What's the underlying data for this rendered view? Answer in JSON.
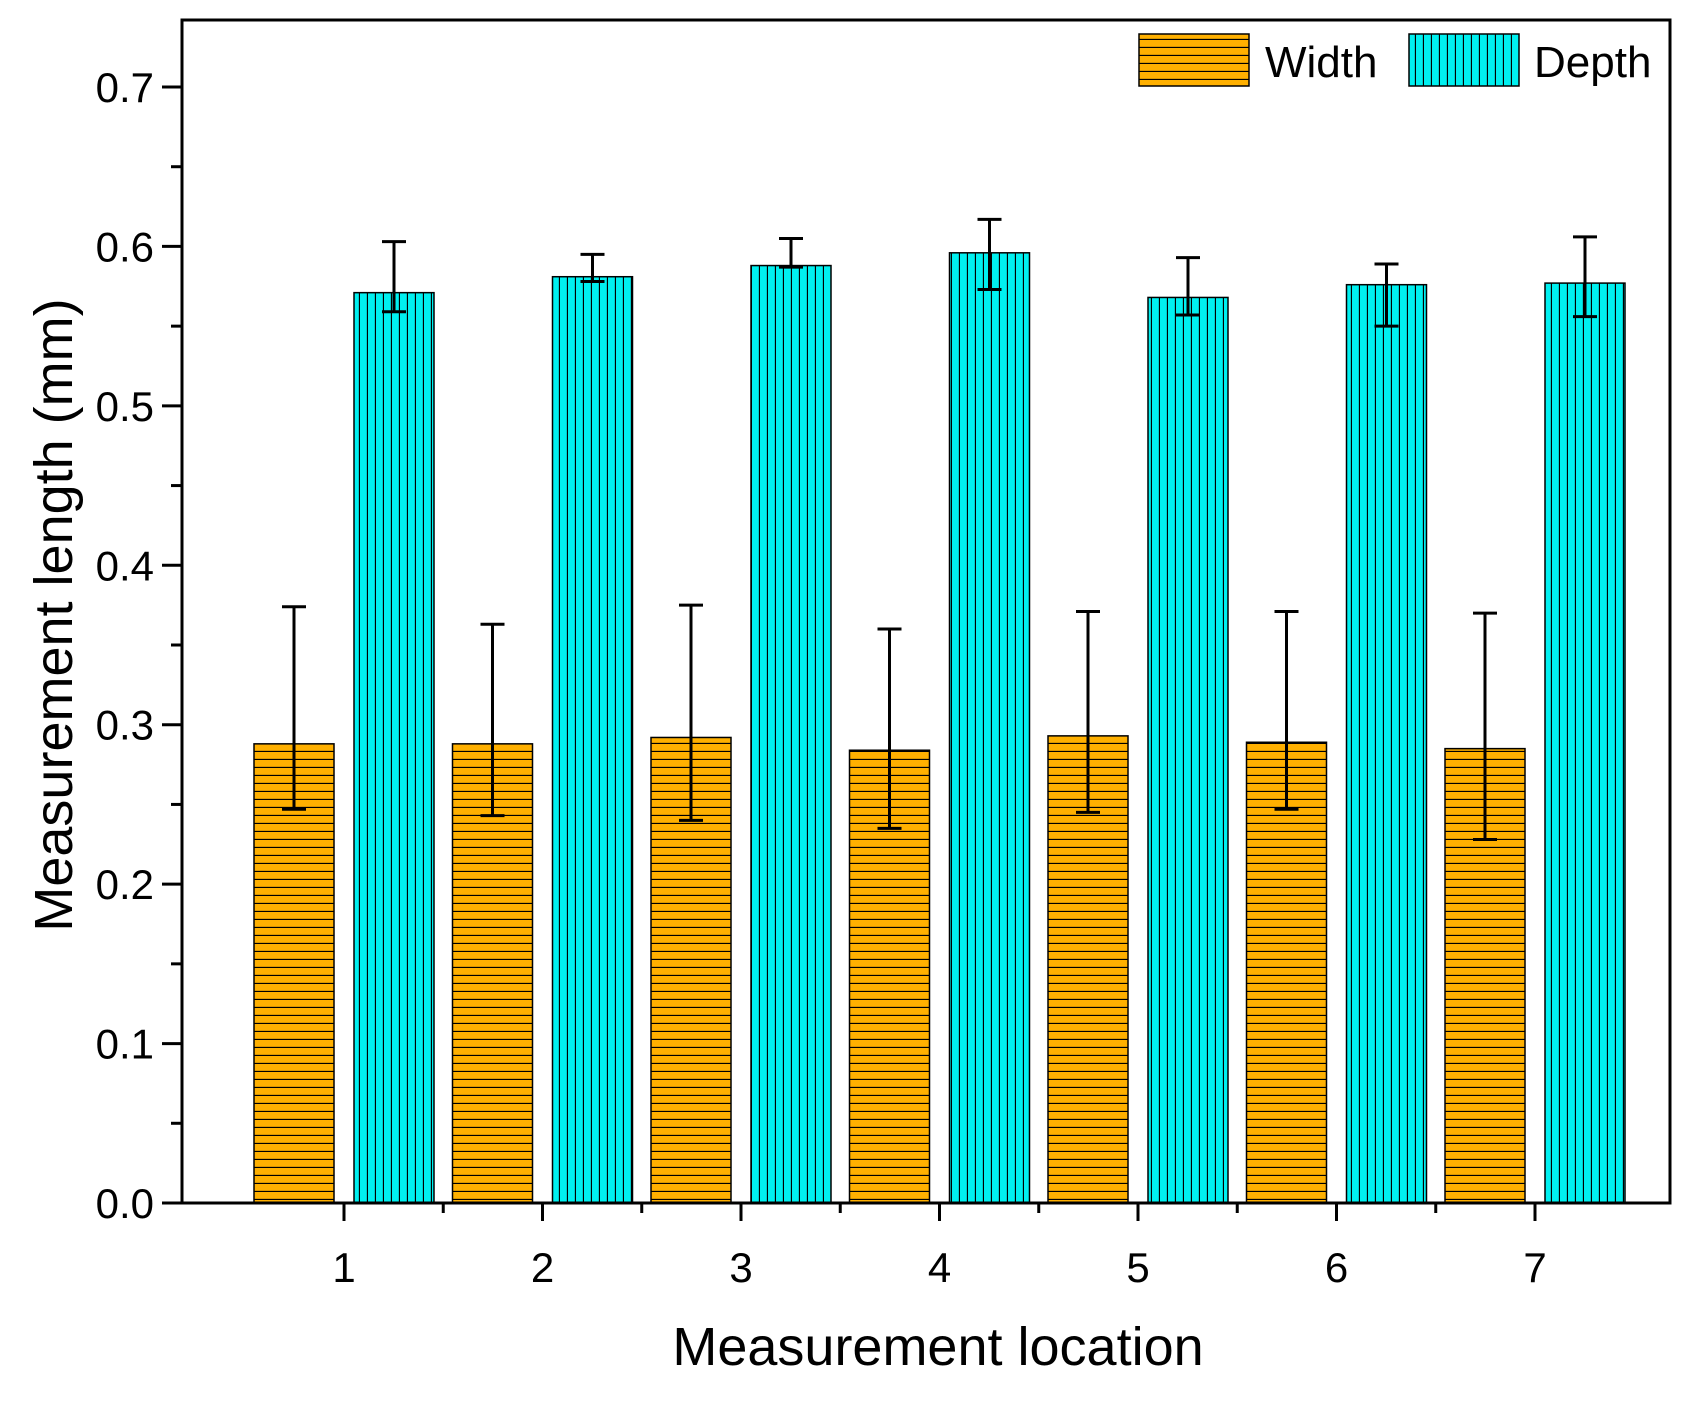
{
  "chart_data": {
    "type": "bar",
    "title": "",
    "xlabel": "Measurement location",
    "ylabel": "Measurement length (mm)",
    "categories": [
      "1",
      "2",
      "3",
      "4",
      "5",
      "6",
      "7"
    ],
    "ylim": [
      0,
      0.75
    ],
    "yticks": [
      0.0,
      0.1,
      0.2,
      0.3,
      0.4,
      0.5,
      0.6,
      0.7
    ],
    "ytick_labels": [
      "0.0",
      "0.1",
      "0.2",
      "0.3",
      "0.4",
      "0.5",
      "0.6",
      "0.7"
    ],
    "legend_position": "top-right",
    "grid": false,
    "series": [
      {
        "name": "Width",
        "color": "#FFB000",
        "pattern": "horizontal-lines",
        "values": [
          0.288,
          0.288,
          0.292,
          0.284,
          0.293,
          0.289,
          0.285
        ],
        "error_upper": [
          0.374,
          0.363,
          0.375,
          0.36,
          0.371,
          0.371,
          0.37
        ],
        "error_lower": [
          0.247,
          0.243,
          0.24,
          0.235,
          0.245,
          0.247,
          0.228
        ]
      },
      {
        "name": "Depth",
        "color": "#00F0F0",
        "pattern": "vertical-lines",
        "values": [
          0.571,
          0.581,
          0.588,
          0.596,
          0.568,
          0.576,
          0.577
        ],
        "error_upper": [
          0.603,
          0.595,
          0.605,
          0.617,
          0.593,
          0.589,
          0.606
        ],
        "error_lower": [
          0.559,
          0.578,
          0.587,
          0.573,
          0.557,
          0.55,
          0.556
        ]
      }
    ]
  }
}
